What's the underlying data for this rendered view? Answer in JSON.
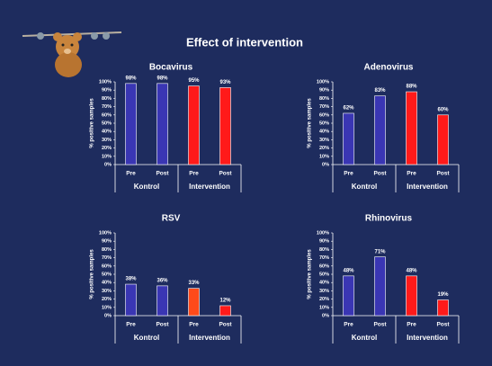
{
  "title": "Effect of intervention",
  "chart_data": [
    {
      "type": "bar",
      "title": "Bocavirus",
      "ylabel": "% positive samples",
      "categories": [
        "Pre",
        "Post",
        "Pre",
        "Post"
      ],
      "groups": [
        "Kontrol",
        "Intervention"
      ],
      "values": [
        98,
        98,
        95,
        93
      ],
      "value_labels": [
        "98%",
        "98%",
        "95%",
        "93%"
      ],
      "colors": [
        "#3a36b4",
        "#3a36b4",
        "#ff1a1a",
        "#ff1a1a"
      ],
      "ylim": [
        0,
        100
      ],
      "yticks": [
        {
          "value": 0,
          "label": "0%"
        },
        {
          "value": 10,
          "label": "10%"
        },
        {
          "value": 20,
          "label": "20%"
        },
        {
          "value": 30,
          "label": "30%"
        },
        {
          "value": 40,
          "label": "40%"
        },
        {
          "value": 50,
          "label": "50%"
        },
        {
          "value": 60,
          "label": "60%"
        },
        {
          "value": 70,
          "label": "70%"
        },
        {
          "value": 80,
          "label": "80%"
        },
        {
          "value": 90,
          "label": "90%"
        },
        {
          "value": 100,
          "label": "100%"
        }
      ]
    },
    {
      "type": "bar",
      "title": "Adenovirus",
      "ylabel": "% positive samples",
      "categories": [
        "Pre",
        "Post",
        "Pre",
        "Post"
      ],
      "groups": [
        "Kontrol",
        "Intervention"
      ],
      "values": [
        62,
        83,
        88,
        60
      ],
      "value_labels": [
        "62%",
        "83%",
        "88%",
        "60%"
      ],
      "colors": [
        "#3a36b4",
        "#3a36b4",
        "#ff1a1a",
        "#ff1a1a"
      ],
      "ylim": [
        0,
        100
      ],
      "yticks": [
        {
          "value": 0,
          "label": "0%"
        },
        {
          "value": 10,
          "label": "10%"
        },
        {
          "value": 20,
          "label": "20%"
        },
        {
          "value": 30,
          "label": "30%"
        },
        {
          "value": 40,
          "label": "40%"
        },
        {
          "value": 50,
          "label": "50%"
        },
        {
          "value": 60,
          "label": "60%"
        },
        {
          "value": 70,
          "label": "70%"
        },
        {
          "value": 80,
          "label": "80%"
        },
        {
          "value": 90,
          "label": "90%"
        },
        {
          "value": 100,
          "label": "100%"
        }
      ]
    },
    {
      "type": "bar",
      "title": "RSV",
      "ylabel": "% positive samples",
      "categories": [
        "Pre",
        "Post",
        "Pre",
        "Post"
      ],
      "groups": [
        "Kontrol",
        "Intervention"
      ],
      "values": [
        38,
        36,
        33,
        12
      ],
      "value_labels": [
        "38%",
        "36%",
        "33%",
        "12%"
      ],
      "colors": [
        "#3a36b4",
        "#3a36b4",
        "#ff4a1a",
        "#ff1a1a"
      ],
      "ylim": [
        0,
        100
      ],
      "yticks": [
        {
          "value": 0,
          "label": "0%"
        },
        {
          "value": 10,
          "label": "10%"
        },
        {
          "value": 20,
          "label": "20%"
        },
        {
          "value": 30,
          "label": "30%"
        },
        {
          "value": 40,
          "label": "40%"
        },
        {
          "value": 50,
          "label": "50%"
        },
        {
          "value": 60,
          "label": "60%"
        },
        {
          "value": 70,
          "label": "70%"
        },
        {
          "value": 80,
          "label": "80%"
        },
        {
          "value": 90,
          "label": "90%"
        },
        {
          "value": 100,
          "label": "100%"
        }
      ]
    },
    {
      "type": "bar",
      "title": "Rhinovirus",
      "ylabel": "% positive samples",
      "categories": [
        "Pre",
        "Post",
        "Pre",
        "Post"
      ],
      "groups": [
        "Kontrol",
        "Intervention"
      ],
      "values": [
        48,
        71,
        48,
        19
      ],
      "value_labels": [
        "48%",
        "71%",
        "48%",
        "19%"
      ],
      "colors": [
        "#3a36b4",
        "#3a36b4",
        "#ff1a1a",
        "#ff1a1a"
      ],
      "ylim": [
        0,
        100
      ],
      "yticks": [
        {
          "value": 0,
          "label": "0%"
        },
        {
          "value": 10,
          "label": "10%"
        },
        {
          "value": 20,
          "label": "20%"
        },
        {
          "value": 30,
          "label": "30%"
        },
        {
          "value": 40,
          "label": "40%"
        },
        {
          "value": 50,
          "label": "50%"
        },
        {
          "value": 60,
          "label": "60%"
        },
        {
          "value": 70,
          "label": "70%"
        },
        {
          "value": 80,
          "label": "80%"
        },
        {
          "value": 90,
          "label": "90%"
        },
        {
          "value": 100,
          "label": "100%"
        }
      ]
    }
  ]
}
